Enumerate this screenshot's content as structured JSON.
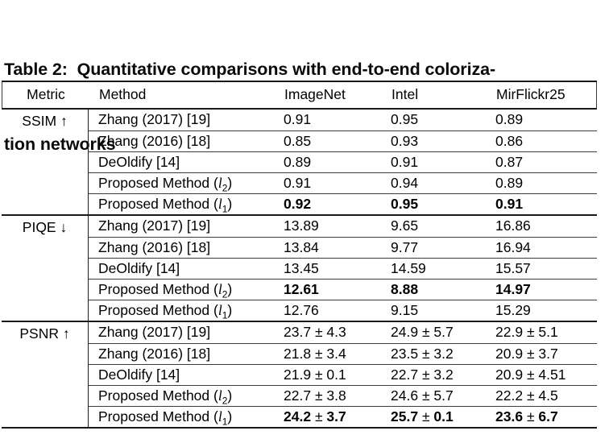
{
  "title": {
    "line1": "Table 2:  Quantitative comparisons with end-to-end coloriza-",
    "line2": "tion networks"
  },
  "table": {
    "header": {
      "metric": "Metric",
      "method": "Method",
      "datasets": [
        "ImageNet",
        "Intel",
        "MirFlickr25"
      ]
    },
    "sections": [
      {
        "metric": "SSIM ↑",
        "rows": [
          {
            "method": "Zhang (2017) [19]",
            "values": [
              "0.91",
              "0.95",
              "0.89"
            ],
            "bold_values": false
          },
          {
            "method": "Zhang (2016) [18]",
            "values": [
              "0.85",
              "0.93",
              "0.86"
            ],
            "bold_values": false
          },
          {
            "method": "DeOldify [14]",
            "values": [
              "0.89",
              "0.91",
              "0.87"
            ],
            "bold_values": false
          },
          {
            "method": "Proposed Method (l_2)",
            "values": [
              "0.91",
              "0.94",
              "0.89"
            ],
            "bold_values": false
          },
          {
            "method": "Proposed Method (l_1)",
            "values": [
              "0.92",
              "0.95",
              "0.91"
            ],
            "bold_values": true
          }
        ]
      },
      {
        "metric": "PIQE ↓",
        "rows": [
          {
            "method": "Zhang (2017) [19]",
            "values": [
              "13.89",
              "9.65",
              "16.86"
            ],
            "bold_values": false
          },
          {
            "method": "Zhang (2016) [18]",
            "values": [
              "13.84",
              "9.77",
              "16.94"
            ],
            "bold_values": false
          },
          {
            "method": "DeOldify [14]",
            "values": [
              "13.45",
              "14.59",
              "15.57"
            ],
            "bold_values": false
          },
          {
            "method": "Proposed Method (l_2)",
            "values": [
              "12.61",
              "8.88",
              "14.97"
            ],
            "bold_values": true
          },
          {
            "method": "Proposed Method (l_1)",
            "values": [
              "12.76",
              "9.15",
              "15.29"
            ],
            "bold_values": false
          }
        ]
      },
      {
        "metric": "PSNR ↑",
        "rows": [
          {
            "method": "Zhang (2017) [19]",
            "values": [
              "23.7 ± 4.3",
              "24.9 ± 5.7",
              "22.9 ± 5.1"
            ],
            "bold_values": false
          },
          {
            "method": "Zhang (2016) [18]",
            "values": [
              "21.8 ± 3.4",
              "23.5 ± 3.2",
              "20.9 ± 3.7"
            ],
            "bold_values": false
          },
          {
            "method": "DeOldify [14]",
            "values": [
              "21.9 ± 0.1",
              "22.7 ± 3.2",
              "20.9 ± 4.51"
            ],
            "bold_values": false
          },
          {
            "method": "Proposed Method (l_2)",
            "values": [
              "22.7 ± 3.8",
              "24.6 ± 5.7",
              "22.2 ± 4.5"
            ],
            "bold_values": false
          },
          {
            "method": "Proposed Method (l_1)",
            "values": [
              "24.2 ± 3.7",
              "25.7 ± 0.1",
              "23.6 ± 6.7"
            ],
            "bold_values": true
          }
        ]
      }
    ]
  }
}
